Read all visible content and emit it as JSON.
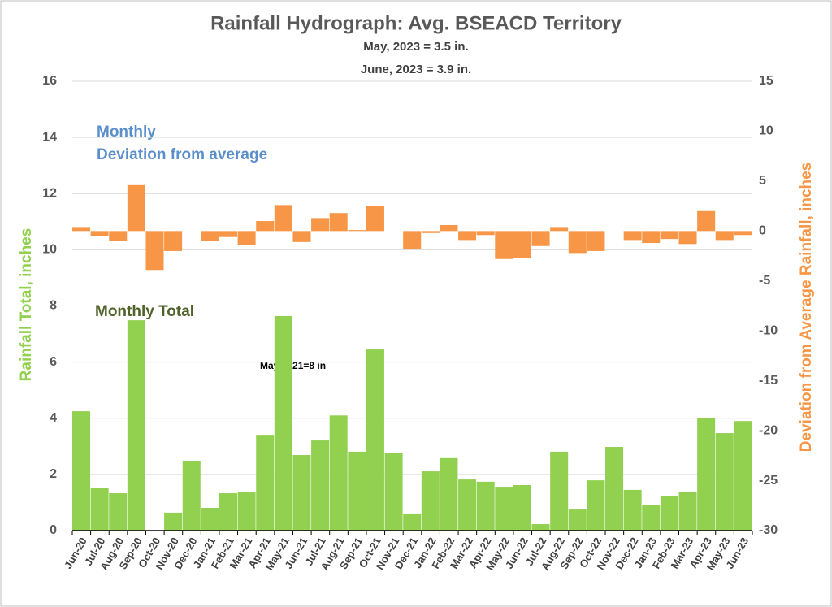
{
  "chart_data": {
    "type": "bar",
    "title": "Rainfall Hydrograph: Avg. BSEACD Territory",
    "subtitle": [
      "May, 2023 = 3.5 in.",
      "June, 2023 = 3.9 in."
    ],
    "y_label": "Rainfall Total, inches",
    "y2_label": "Deviation from Average Rainfall, inches",
    "annotations": [
      "Monthly",
      "Deviation from average",
      "Monthly Total",
      "May 2021=8 in"
    ],
    "categories": [
      "Jun-20",
      "Jul-20",
      "Aug-20",
      "Sep-20",
      "Oct-20",
      "Nov-20",
      "Dec-20",
      "Jan-21",
      "Feb-21",
      "Mar-21",
      "Apr-21",
      "May-21",
      "Jun-21",
      "Jul-21",
      "Aug-21",
      "Sep-21",
      "Oct-21",
      "Nov-21",
      "Dec-21",
      "Jan-22",
      "Feb-22",
      "Mar-22",
      "Apr-22",
      "May-22",
      "Jun-22",
      "Jul-22",
      "Aug-22",
      "Sep-22",
      "Oct-22",
      "Nov-22",
      "Dec-22",
      "Jan-23",
      "Feb-23",
      "Mar-23",
      "Apr-23",
      "May-23",
      "Jun-23"
    ],
    "series": [
      {
        "color": "#92d050",
        "axis": "y",
        "values": [
          4.25,
          1.53,
          1.33,
          7.49,
          0,
          0.64,
          2.49,
          0.81,
          1.33,
          1.36,
          3.41,
          7.64,
          2.69,
          3.21,
          4.1,
          2.81,
          6.45,
          2.75,
          0.61,
          2.11,
          2.58,
          1.82,
          1.74,
          1.56,
          1.62,
          0.23,
          2.81,
          0.75,
          1.79,
          2.98,
          1.45,
          0.9,
          1.24,
          1.39,
          4.02,
          3.47,
          3.9
        ]
      },
      {
        "color": "#f79646",
        "axis": "y2",
        "values": [
          0.4,
          -0.5,
          -1.0,
          4.6,
          -3.9,
          -2.0,
          0,
          -1.0,
          -0.6,
          -1.4,
          1.0,
          2.6,
          -1.1,
          1.3,
          1.8,
          0.1,
          2.5,
          0,
          -1.8,
          -0.2,
          0.6,
          -0.9,
          -0.4,
          -2.8,
          -2.7,
          -1.5,
          0.4,
          -2.2,
          -2.0,
          0,
          -0.9,
          -1.2,
          -0.8,
          -1.3,
          2.0,
          -0.9,
          -0.4
        ]
      }
    ],
    "ylim": [
      0,
      16
    ],
    "yticks": [
      0,
      2,
      4,
      6,
      8,
      10,
      12,
      14,
      16
    ],
    "y2lim": [
      -30,
      15
    ],
    "y2ticks": [
      -30,
      -25,
      -20,
      -15,
      -10,
      -5,
      0,
      5,
      10,
      15
    ],
    "grid": true
  }
}
